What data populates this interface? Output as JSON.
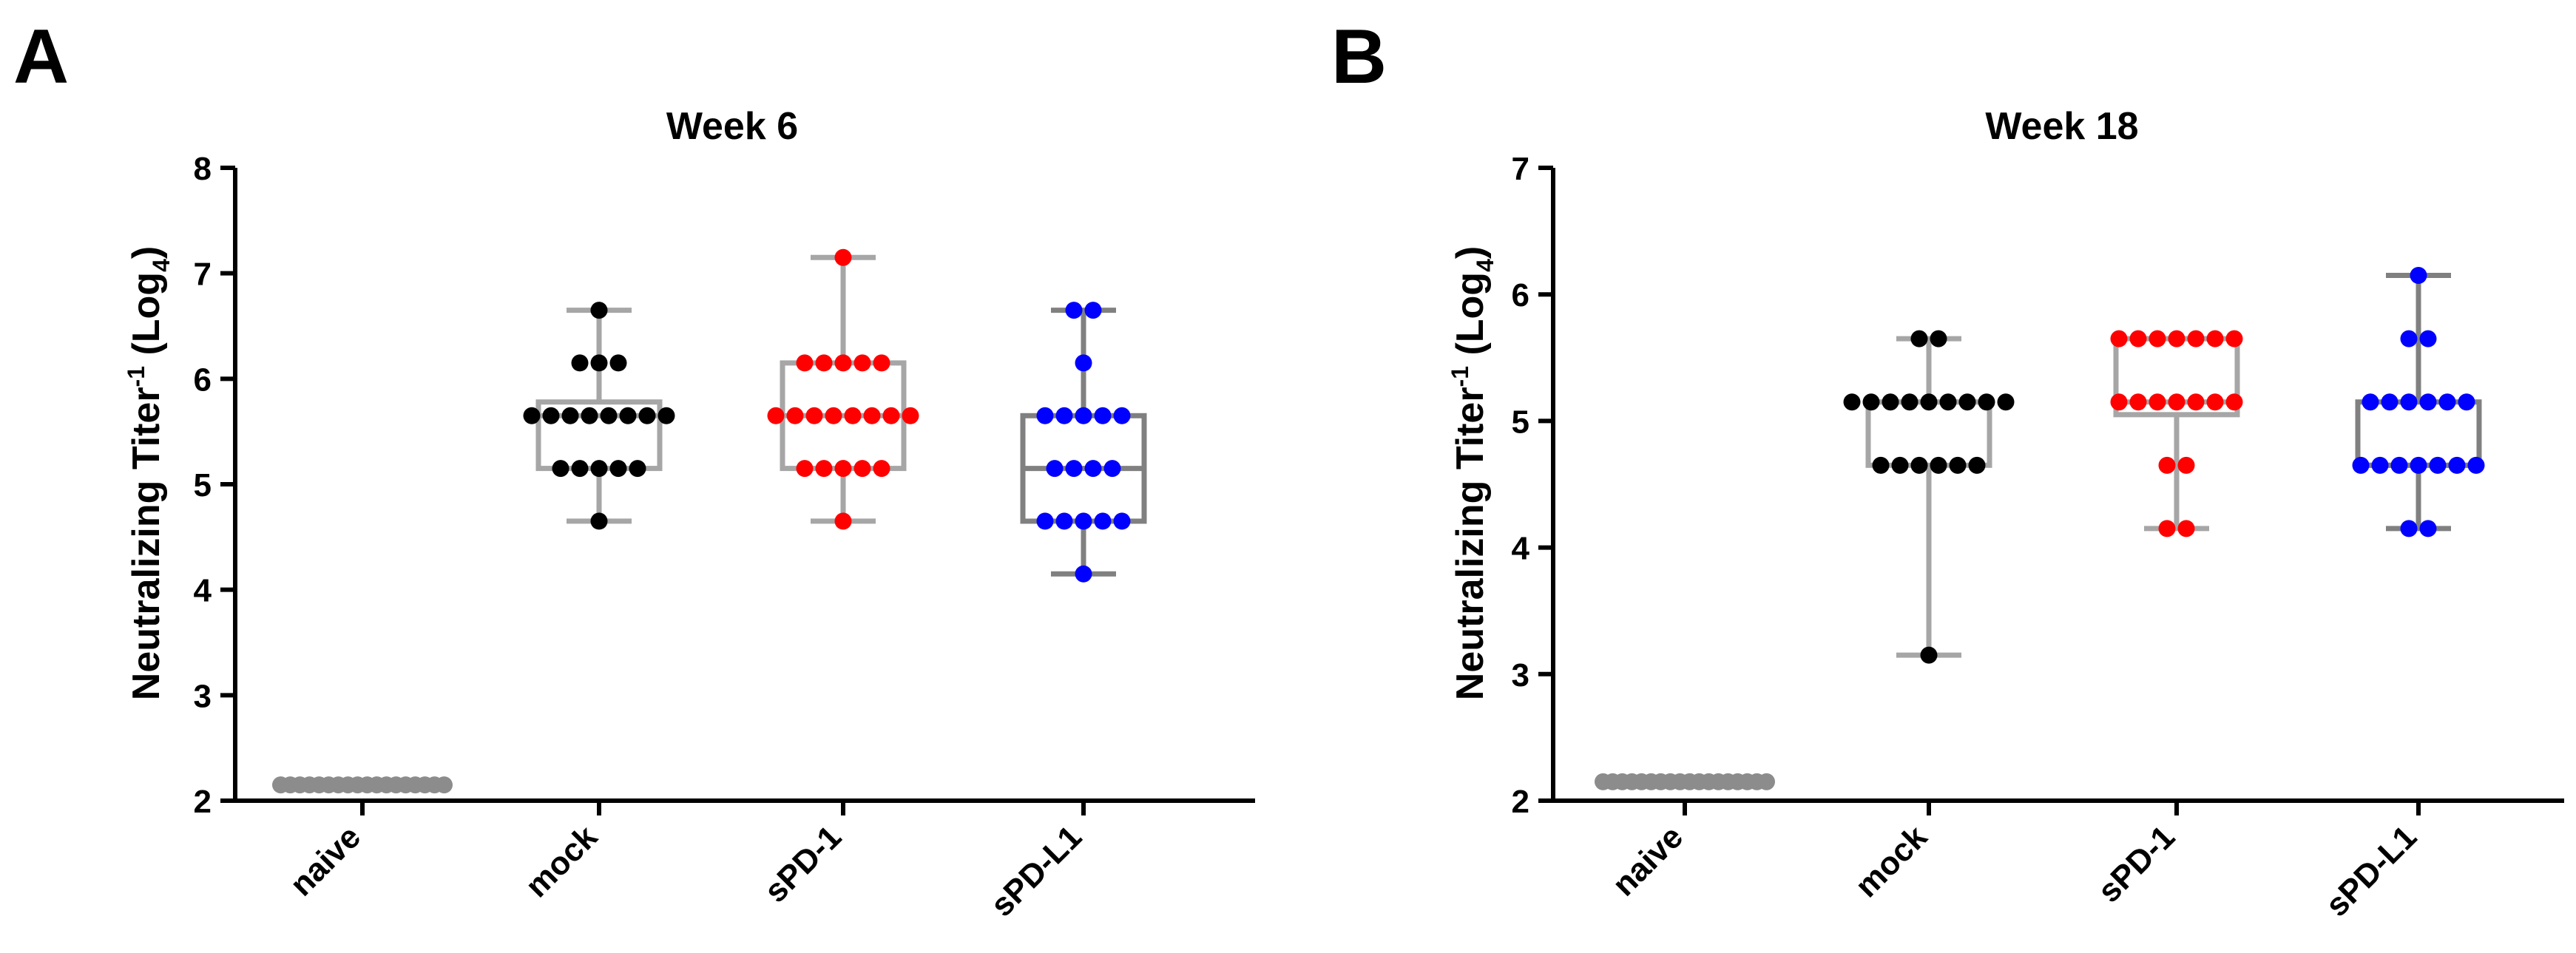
{
  "panels": [
    {
      "letter": "A"
    },
    {
      "letter": "B"
    }
  ],
  "chart_data": [
    {
      "type": "box",
      "title": "Week 6",
      "xlabel": "",
      "ylabel": {
        "main": "Neutralizing Titer",
        "sup": "-1",
        "tail": " (Log",
        "sub": "4",
        "close": ")"
      },
      "ylim": [
        2,
        8
      ],
      "yticks": [
        2,
        3,
        4,
        5,
        6,
        7,
        8
      ],
      "categories": [
        "naive",
        "mock",
        "sPD-1",
        "sPD-L1"
      ],
      "series": [
        {
          "name": "naive",
          "color": "#8c8c8c",
          "box_color": "#8c8c8c",
          "box": null,
          "points": [
            2.15,
            2.15,
            2.15,
            2.15,
            2.15,
            2.15,
            2.15,
            2.15,
            2.15,
            2.15,
            2.15,
            2.15,
            2.15,
            2.15,
            2.15,
            2.15,
            2.15,
            2.15
          ]
        },
        {
          "name": "mock",
          "color": "#000000",
          "box_color": "#a6a6a6",
          "box": {
            "min": 4.65,
            "q1": 5.15,
            "median": 5.65,
            "q3": 5.78,
            "max": 6.65
          },
          "points": [
            6.65,
            6.15,
            6.15,
            6.15,
            5.65,
            5.65,
            5.65,
            5.65,
            5.65,
            5.65,
            5.65,
            5.65,
            5.15,
            5.15,
            5.15,
            5.15,
            5.15,
            4.65
          ]
        },
        {
          "name": "sPD-1",
          "color": "#ff0000",
          "box_color": "#a6a6a6",
          "box": {
            "min": 4.65,
            "q1": 5.15,
            "median": 5.65,
            "q3": 6.15,
            "max": 7.15
          },
          "points": [
            7.15,
            6.15,
            6.15,
            6.15,
            6.15,
            6.15,
            5.65,
            5.65,
            5.65,
            5.65,
            5.65,
            5.65,
            5.65,
            5.65,
            5.15,
            5.15,
            5.15,
            5.15,
            5.15,
            4.65
          ]
        },
        {
          "name": "sPD-L1",
          "color": "#0000ff",
          "box_color": "#808080",
          "box": {
            "min": 4.15,
            "q1": 4.65,
            "median": 5.15,
            "q3": 5.65,
            "max": 6.65
          },
          "points": [
            6.65,
            6.65,
            6.15,
            5.65,
            5.65,
            5.65,
            5.65,
            5.65,
            5.15,
            5.15,
            5.15,
            5.15,
            4.65,
            4.65,
            4.65,
            4.65,
            4.65,
            4.15
          ]
        }
      ]
    },
    {
      "type": "box",
      "title": "Week 18",
      "xlabel": "",
      "ylabel": {
        "main": "Neutralizing Titer",
        "sup": "-1",
        "tail": " (Log",
        "sub": "4",
        "close": ")"
      },
      "ylim": [
        2,
        7
      ],
      "yticks": [
        2,
        3,
        4,
        5,
        6,
        7
      ],
      "categories": [
        "naive",
        "mock",
        "sPD-1",
        "sPD-L1"
      ],
      "series": [
        {
          "name": "naive",
          "color": "#8c8c8c",
          "box_color": "#8c8c8c",
          "box": null,
          "points": [
            2.15,
            2.15,
            2.15,
            2.15,
            2.15,
            2.15,
            2.15,
            2.15,
            2.15,
            2.15,
            2.15,
            2.15,
            2.15,
            2.15,
            2.15,
            2.15,
            2.15,
            2.15
          ]
        },
        {
          "name": "mock",
          "color": "#000000",
          "box_color": "#a6a6a6",
          "box": {
            "min": 3.15,
            "q1": 4.65,
            "median": 5.15,
            "q3": 5.15,
            "max": 5.65
          },
          "points": [
            5.65,
            5.65,
            5.15,
            5.15,
            5.15,
            5.15,
            5.15,
            5.15,
            5.15,
            5.15,
            5.15,
            4.65,
            4.65,
            4.65,
            4.65,
            4.65,
            4.65,
            3.15
          ]
        },
        {
          "name": "sPD-1",
          "color": "#ff0000",
          "box_color": "#a6a6a6",
          "box": {
            "min": 4.15,
            "q1": 5.05,
            "median": 5.15,
            "q3": 5.65,
            "max": 5.65
          },
          "points": [
            5.65,
            5.65,
            5.65,
            5.65,
            5.65,
            5.65,
            5.65,
            5.15,
            5.15,
            5.15,
            5.15,
            5.15,
            5.15,
            5.15,
            4.65,
            4.65,
            4.15,
            4.15
          ]
        },
        {
          "name": "sPD-L1",
          "color": "#0000ff",
          "box_color": "#808080",
          "box": {
            "min": 4.15,
            "q1": 4.65,
            "median": 4.65,
            "q3": 5.15,
            "max": 6.15
          },
          "points": [
            6.15,
            5.65,
            5.65,
            5.15,
            5.15,
            5.15,
            5.15,
            5.15,
            5.15,
            4.65,
            4.65,
            4.65,
            4.65,
            4.65,
            4.65,
            4.65,
            4.15,
            4.15
          ]
        }
      ]
    }
  ]
}
